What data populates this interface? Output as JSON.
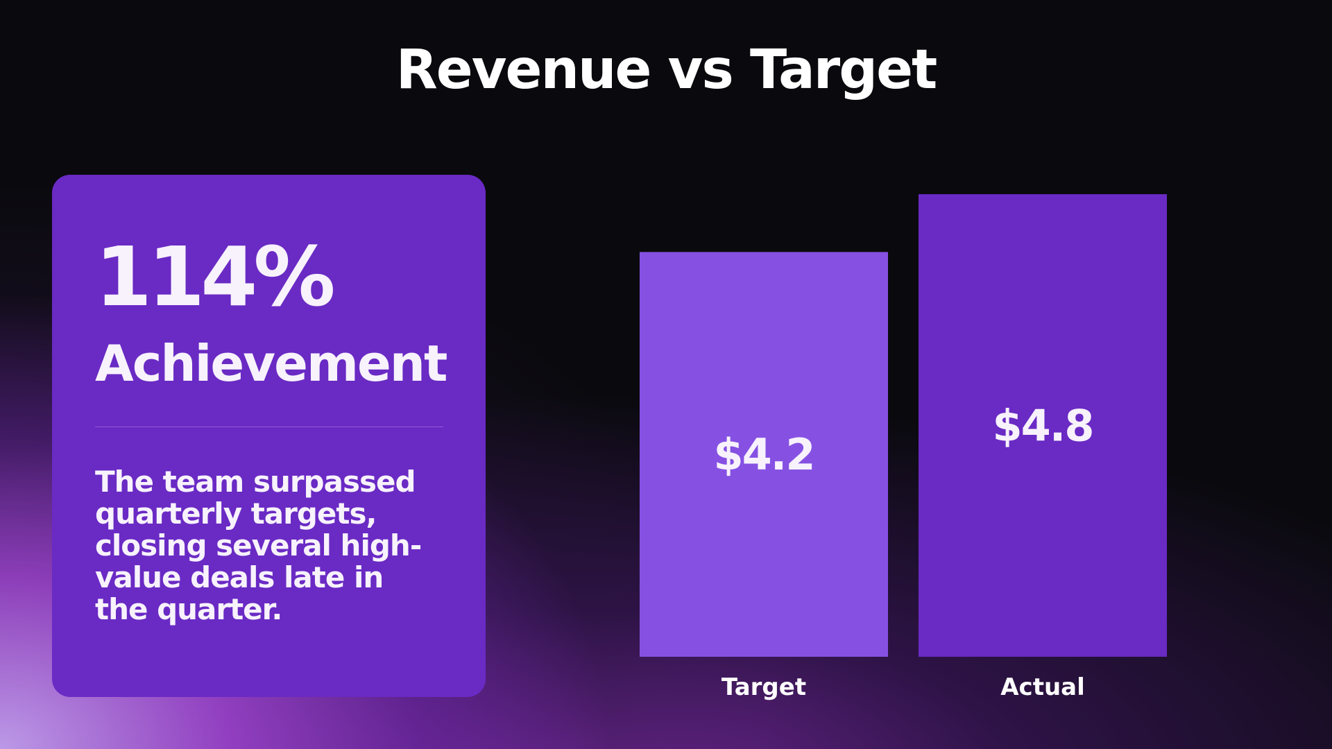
{
  "slide": {
    "title": "Revenue vs Target"
  },
  "card": {
    "percent": "114%",
    "label": "Achievement",
    "description": "The team surpassed quarterly targets, closing several high-value deals late in the quarter."
  },
  "chart_data": {
    "type": "bar",
    "categories": [
      "Target",
      "Actual"
    ],
    "values": [
      4.2,
      4.8
    ],
    "value_labels": [
      "$4.2",
      "$4.8"
    ],
    "title": "",
    "xlabel": "",
    "ylabel": "",
    "ylim": [
      0,
      4.8
    ],
    "grid": false,
    "legend": "none",
    "colors": [
      "#8651e3",
      "#6a2ac4"
    ]
  }
}
